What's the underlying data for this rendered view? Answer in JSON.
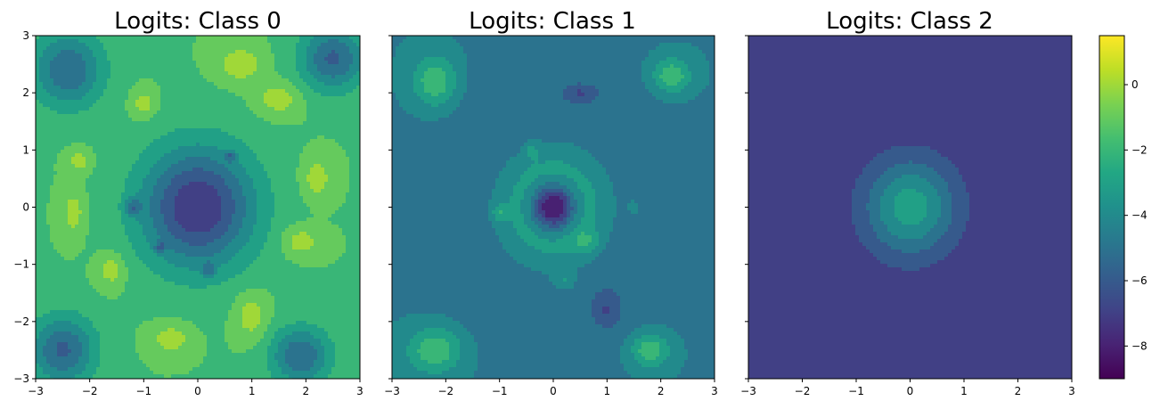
{
  "chart_data": {
    "type": "heatmap",
    "subtype": "filled-contour",
    "colormap": "viridis",
    "colorbar": {
      "range": [
        -9,
        1.5
      ],
      "ticks": [
        0,
        -2,
        -4,
        -6,
        -8
      ],
      "tick_labels": [
        "0",
        "−2",
        "−4",
        "−6",
        "−8"
      ]
    },
    "panels": [
      {
        "title": "Logits: Class 0",
        "xlim": [
          -3,
          3
        ],
        "ylim": [
          -3,
          3
        ],
        "xticks": [
          "−3",
          "−2",
          "−1",
          "0",
          "1",
          "2",
          "3"
        ],
        "yticks": [
          "3",
          "2",
          "1",
          "0",
          "−1",
          "−2",
          "−3"
        ],
        "show_yticklabels": true,
        "level_values": [
          -6.5,
          -5.5,
          -4.5,
          -3.5,
          -2.5,
          -1.5,
          -0.5,
          0.5,
          1.5
        ],
        "base_value": -1.5,
        "features": [
          {
            "x": 0,
            "y": 0,
            "sx": 1.05,
            "sy": 1.05,
            "a": -6.0
          },
          {
            "x": -2.4,
            "y": 2.4,
            "sx": 0.65,
            "sy": 0.65,
            "a": -4.0
          },
          {
            "x": 2.5,
            "y": 2.6,
            "sx": 0.6,
            "sy": 0.55,
            "a": -4.2
          },
          {
            "x": -2.5,
            "y": -2.5,
            "sx": 0.6,
            "sy": 0.6,
            "a": -4.2
          },
          {
            "x": 1.9,
            "y": -2.6,
            "sx": 0.55,
            "sy": 0.5,
            "a": -4.0
          },
          {
            "x": 0.8,
            "y": 2.5,
            "sx": 0.4,
            "sy": 0.3,
            "a": 1.8
          },
          {
            "x": 1.5,
            "y": 1.9,
            "sx": 0.4,
            "sy": 0.28,
            "a": 1.7
          },
          {
            "x": -1.0,
            "y": 1.8,
            "sx": 0.22,
            "sy": 0.25,
            "a": 1.6
          },
          {
            "x": -2.2,
            "y": 0.8,
            "sx": 0.2,
            "sy": 0.2,
            "a": 1.5
          },
          {
            "x": -2.3,
            "y": -0.1,
            "sx": 0.2,
            "sy": 0.4,
            "a": 1.6
          },
          {
            "x": -1.6,
            "y": -1.1,
            "sx": 0.25,
            "sy": 0.3,
            "a": 1.6
          },
          {
            "x": 2.2,
            "y": 0.5,
            "sx": 0.25,
            "sy": 0.35,
            "a": 1.7
          },
          {
            "x": 1.9,
            "y": -0.6,
            "sx": 0.35,
            "sy": 0.25,
            "a": 1.7
          },
          {
            "x": 1.0,
            "y": -1.9,
            "sx": 0.3,
            "sy": 0.4,
            "a": 1.7
          },
          {
            "x": -0.5,
            "y": -2.3,
            "sx": 0.35,
            "sy": 0.25,
            "a": 1.7
          },
          {
            "x": -1.2,
            "y": 0,
            "sx": 0.15,
            "sy": 0.15,
            "a": -2.5
          },
          {
            "x": 0.2,
            "y": -1.1,
            "sx": 0.12,
            "sy": 0.12,
            "a": -2.0
          },
          {
            "x": -0.7,
            "y": -0.7,
            "sx": 0.1,
            "sy": 0.1,
            "a": -2.0
          },
          {
            "x": 0.6,
            "y": 0.9,
            "sx": 0.1,
            "sy": 0.1,
            "a": -2.0
          }
        ]
      },
      {
        "title": "Logits: Class 1",
        "xlim": [
          -3,
          3
        ],
        "ylim": [
          -3,
          3
        ],
        "xticks": [
          "−3",
          "−2",
          "−1",
          "0",
          "1",
          "2",
          "3"
        ],
        "yticks": [
          "3",
          "2",
          "1",
          "0",
          "−1",
          "−2",
          "−3"
        ],
        "show_yticklabels": false,
        "level_values": [
          -7.5,
          -6.5,
          -5.5,
          -4.5,
          -3.5,
          -2.5,
          -1.5,
          -0.5,
          0.5,
          1.5
        ],
        "base_value": -4.5,
        "features": [
          {
            "x": 0,
            "y": 0,
            "sx": 1.0,
            "sy": 1.0,
            "a": 5.8
          },
          {
            "x": 0,
            "y": 0,
            "sx": 0.42,
            "sy": 0.42,
            "a": -8.0
          },
          {
            "x": 0,
            "y": 0,
            "sx": 1.9,
            "sy": 1.9,
            "a": -2.2
          },
          {
            "x": -2.2,
            "y": 2.2,
            "sx": 0.4,
            "sy": 0.45,
            "a": 3.0
          },
          {
            "x": 2.2,
            "y": 2.3,
            "sx": 0.35,
            "sy": 0.3,
            "a": 3.0
          },
          {
            "x": -2.2,
            "y": -2.5,
            "sx": 0.5,
            "sy": 0.4,
            "a": 3.0
          },
          {
            "x": 1.8,
            "y": -2.5,
            "sx": 0.35,
            "sy": 0.3,
            "a": 3.0
          },
          {
            "x": -1.0,
            "y": -0.1,
            "sx": 0.15,
            "sy": 0.15,
            "a": 1.6
          },
          {
            "x": 0.6,
            "y": -0.6,
            "sx": 0.25,
            "sy": 0.2,
            "a": 1.5
          },
          {
            "x": 0.2,
            "y": -1.3,
            "sx": 0.2,
            "sy": 0.15,
            "a": 1.4
          },
          {
            "x": -0.4,
            "y": 1.0,
            "sx": 0.12,
            "sy": 0.15,
            "a": 1.4
          },
          {
            "x": 1.5,
            "y": 0,
            "sx": 0.12,
            "sy": 0.12,
            "a": 1.2
          },
          {
            "x": 0.5,
            "y": 2.0,
            "sx": 0.3,
            "sy": 0.15,
            "a": -1.5
          },
          {
            "x": 1.0,
            "y": -1.8,
            "sx": 0.25,
            "sy": 0.3,
            "a": -1.5
          }
        ]
      },
      {
        "title": "Logits: Class 2",
        "xlim": [
          -3,
          3
        ],
        "ylim": [
          -3,
          3
        ],
        "xticks": [
          "−3",
          "−2",
          "−1",
          "0",
          "1",
          "2",
          "3"
        ],
        "yticks": [
          "3",
          "2",
          "1",
          "0",
          "−1",
          "−2",
          "−3"
        ],
        "show_yticklabels": false,
        "level_values": [
          -6.5,
          -5.5,
          -4.5,
          -3.5,
          -2.5,
          -1.5
        ],
        "base_value": -7.0,
        "features": [
          {
            "x": 0,
            "y": 0,
            "sx": 0.88,
            "sy": 0.88,
            "a": 5.6
          },
          {
            "x": 0,
            "y": 0,
            "sx": 1.25,
            "sy": 1.25,
            "a": -1.5
          }
        ]
      }
    ]
  }
}
